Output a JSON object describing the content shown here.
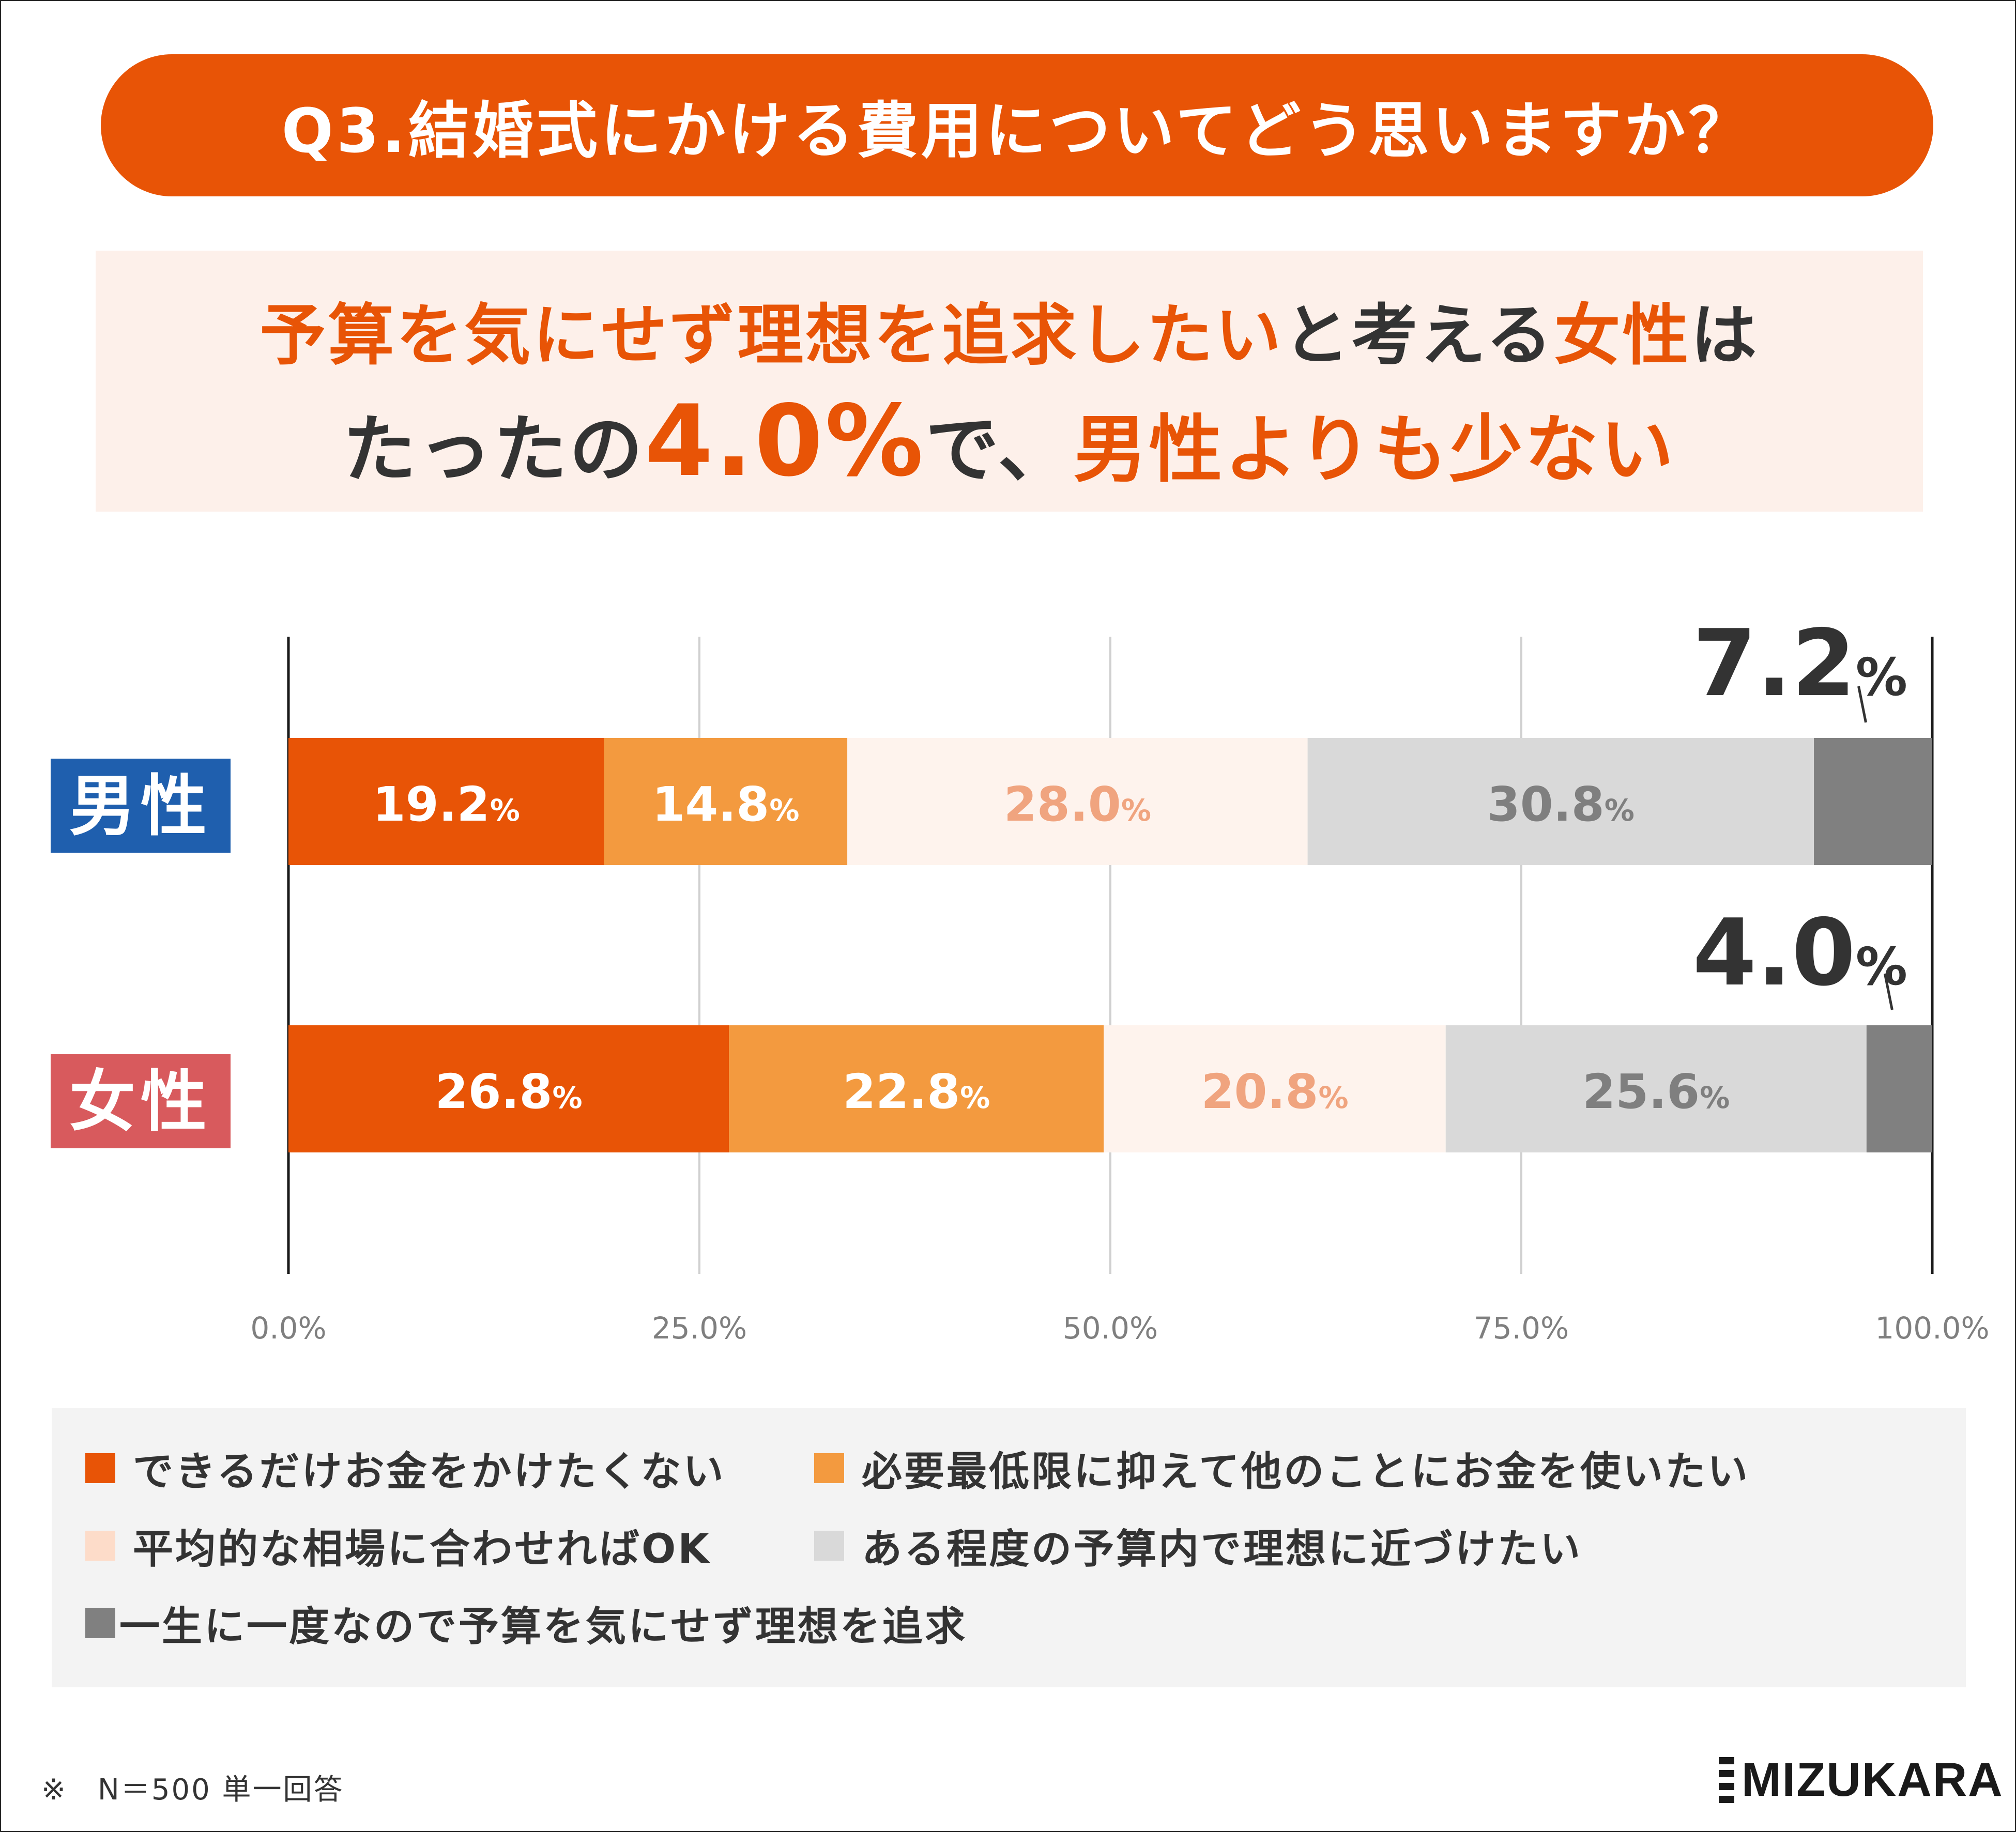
{
  "question": "Q3.結婚式にかける費用についてどう思いますか？",
  "callout": {
    "line1_a": "予算を気にせず理想を追求したい",
    "line1_b": "と考える",
    "line1_c": "女性",
    "line1_d": "は",
    "line2_a": "たったの",
    "line2_b": "4.0%",
    "line2_c": "で、",
    "line2_d": "男性よりも少ない"
  },
  "colors": {
    "brand": "#e85406",
    "male_label_bg": "#1f5fae",
    "female_label_bg": "#d85a5d"
  },
  "chart_data": {
    "type": "bar",
    "orientation": "horizontal",
    "stacked": true,
    "categories": [
      "男性",
      "女性"
    ],
    "series": [
      {
        "name": "できるだけお金をかけたくない",
        "values": [
          19.2,
          26.8
        ],
        "color": "#e85406",
        "label_color": "#ffffff"
      },
      {
        "name": "必要最低限に抑えて他のことにお金を使いたい",
        "values": [
          14.8,
          22.8
        ],
        "color": "#f39a3f",
        "label_color": "#ffffff"
      },
      {
        "name": "平均的な相場に合わせればOK",
        "values": [
          28.0,
          20.8
        ],
        "color": "#fef3ed",
        "label_color": "#f0a47f"
      },
      {
        "name": "ある程度の予算内で理想に近づけたい",
        "values": [
          30.8,
          25.6
        ],
        "color": "#d9d9d9",
        "label_color": "#7f7f7f"
      },
      {
        "name": "一生に一度なので予算を気にせず理想を追求",
        "values": [
          7.2,
          4.0
        ],
        "color": "#808080",
        "label_color": "#333333"
      }
    ],
    "value_labels": [
      [
        "19.2",
        "14.8",
        "28.0",
        "30.8",
        "7.2"
      ],
      [
        "26.8",
        "22.8",
        "20.8",
        "25.6",
        "4.0"
      ]
    ],
    "percent_sign": "%",
    "xlim": [
      0,
      100
    ],
    "xticks": [
      "0.0%",
      "25.0%",
      "50.0%",
      "75.0%",
      "100.0%"
    ],
    "grid": true,
    "legend": "bottom"
  },
  "footnote": "※　N＝500 単一回答",
  "logo_text": "MIZUKARA"
}
